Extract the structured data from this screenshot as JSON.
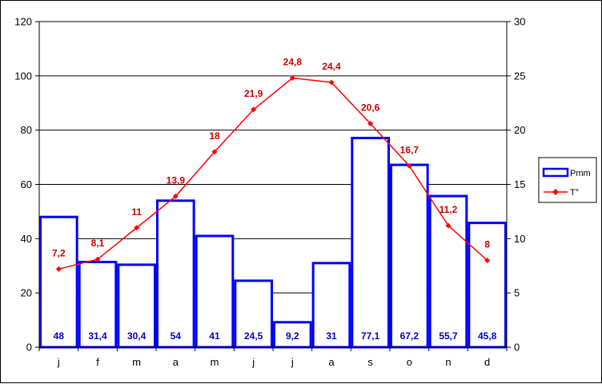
{
  "chart_data": {
    "type": "bar",
    "categories": [
      "j",
      "f",
      "m",
      "a",
      "m",
      "j",
      "j",
      "a",
      "s",
      "o",
      "n",
      "d"
    ],
    "series": [
      {
        "name": "Pmm",
        "type": "bar",
        "axis": "left",
        "values": [
          48,
          31.4,
          30.4,
          54,
          41,
          24.5,
          9.2,
          31,
          77.1,
          67.2,
          55.7,
          45.8
        ],
        "labels": [
          "48",
          "31,4",
          "30,4",
          "54",
          "41",
          "24,5",
          "9,2",
          "31",
          "77,1",
          "67,2",
          "55,7",
          "45,8"
        ]
      },
      {
        "name": "T°",
        "type": "line",
        "axis": "right",
        "values": [
          7.2,
          8.1,
          11,
          13.9,
          18,
          21.9,
          24.8,
          24.4,
          20.6,
          16.7,
          11.2,
          8
        ],
        "labels": [
          "7,2",
          "8,1",
          "11",
          "13,9",
          "18",
          "21,9",
          "24,8",
          "24,4",
          "20,6",
          "16,7",
          "11,2",
          "8"
        ]
      }
    ],
    "y_left": {
      "ylim": [
        0,
        120
      ],
      "ticks": [
        0,
        20,
        40,
        60,
        80,
        100,
        120
      ]
    },
    "y_right": {
      "ylim": [
        0,
        30
      ],
      "ticks": [
        0,
        5,
        10,
        15,
        20,
        25,
        30
      ]
    },
    "grid": true,
    "legend_position": "right",
    "colors": {
      "bar": "#0000ff",
      "line": "#ff0000",
      "bar_label": "#0000cc",
      "line_label": "#cc0000"
    }
  }
}
